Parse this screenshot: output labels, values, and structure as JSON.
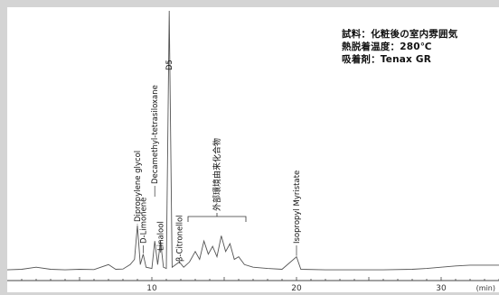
{
  "chart_data": {
    "type": "line",
    "title": "",
    "xlabel": "(min)",
    "ylabel": "",
    "xlim": [
      0,
      34
    ],
    "x_ticks": [
      10,
      20,
      30
    ],
    "x_tick_labels": [
      "10",
      "20",
      "30"
    ],
    "grid": false,
    "conditions": [
      "試料：化粧後の室内雰囲気",
      "熱脱着温度：280℃",
      "吸着剤：Tenax GR"
    ],
    "peaks": [
      {
        "name": "Dipropylene glycol",
        "x": 9.0,
        "y": 0.18
      },
      {
        "name": "D-Limonene",
        "x": 9.4,
        "y": 0.07
      },
      {
        "name": "Decamethyl-tetrasiloxane",
        "x": 10.2,
        "y": 0.12
      },
      {
        "name": "Linalool",
        "x": 10.6,
        "y": 0.12
      },
      {
        "name": "D5",
        "x": 11.2,
        "y": 1.0
      },
      {
        "name": "β-Citronellol",
        "x": 11.9,
        "y": 0.04
      },
      {
        "name": "Isopropyl Myristate",
        "x": 20.0,
        "y": 0.06
      }
    ],
    "group_annotation": {
      "label": "外部環境由来化合物",
      "x_range": [
        12.5,
        16.5
      ]
    },
    "trace": [
      [
        0,
        0.01
      ],
      [
        1,
        0.012
      ],
      [
        2,
        0.02
      ],
      [
        3,
        0.012
      ],
      [
        4,
        0.01
      ],
      [
        5,
        0.012
      ],
      [
        6,
        0.011
      ],
      [
        7,
        0.03
      ],
      [
        7.5,
        0.012
      ],
      [
        8,
        0.013
      ],
      [
        8.5,
        0.03
      ],
      [
        8.8,
        0.05
      ],
      [
        9.0,
        0.18
      ],
      [
        9.2,
        0.03
      ],
      [
        9.4,
        0.07
      ],
      [
        9.6,
        0.02
      ],
      [
        10.0,
        0.015
      ],
      [
        10.2,
        0.12
      ],
      [
        10.4,
        0.03
      ],
      [
        10.6,
        0.12
      ],
      [
        10.8,
        0.02
      ],
      [
        11.0,
        0.015
      ],
      [
        11.2,
        1.0
      ],
      [
        11.4,
        0.02
      ],
      [
        11.9,
        0.04
      ],
      [
        12.2,
        0.02
      ],
      [
        12.6,
        0.04
      ],
      [
        13.0,
        0.08
      ],
      [
        13.3,
        0.05
      ],
      [
        13.6,
        0.12
      ],
      [
        13.9,
        0.07
      ],
      [
        14.2,
        0.1
      ],
      [
        14.5,
        0.06
      ],
      [
        14.8,
        0.14
      ],
      [
        15.1,
        0.08
      ],
      [
        15.4,
        0.11
      ],
      [
        15.7,
        0.05
      ],
      [
        16.0,
        0.06
      ],
      [
        16.4,
        0.03
      ],
      [
        17.0,
        0.02
      ],
      [
        18.0,
        0.015
      ],
      [
        19.0,
        0.012
      ],
      [
        20.0,
        0.06
      ],
      [
        20.3,
        0.012
      ],
      [
        22,
        0.01
      ],
      [
        24,
        0.01
      ],
      [
        26,
        0.01
      ],
      [
        28,
        0.012
      ],
      [
        29,
        0.015
      ],
      [
        30,
        0.02
      ],
      [
        31,
        0.025
      ],
      [
        32,
        0.028
      ],
      [
        33,
        0.028
      ],
      [
        34,
        0.028
      ]
    ]
  }
}
